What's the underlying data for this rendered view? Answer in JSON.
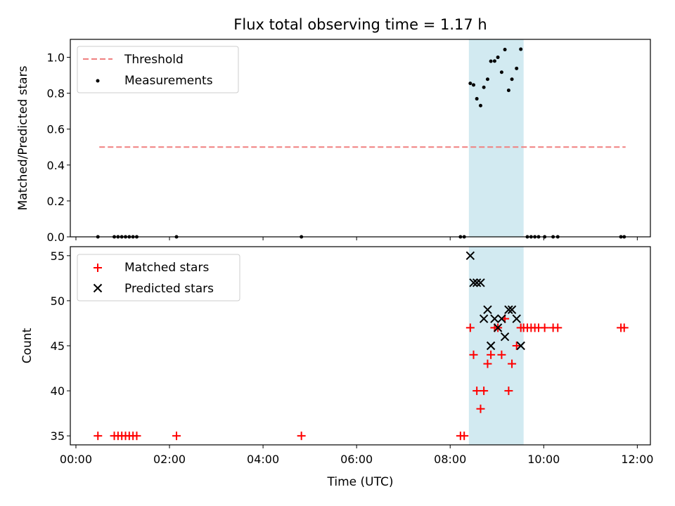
{
  "chart_data": [
    {
      "type": "scatter",
      "title": "Flux total observing time = 1.17 h",
      "xlabel": "",
      "ylabel": "Matched/Predicted stars",
      "xlim": [
        -0.12,
        12.28
      ],
      "ylim": [
        0.0,
        1.1
      ],
      "yticks": [
        "0.0",
        "0.2",
        "0.4",
        "0.6",
        "0.8",
        "1.0"
      ],
      "shaded_region": [
        8.4,
        9.57
      ],
      "series": [
        {
          "name": "Threshold",
          "kind": "dashed-line",
          "color": "#f08080",
          "x": [
            0.5,
            11.75
          ],
          "y": [
            0.5,
            0.5
          ]
        },
        {
          "name": "Measurements",
          "kind": "dot",
          "color": "#000000",
          "points": [
            [
              0.47,
              0.0
            ],
            [
              0.82,
              0.0
            ],
            [
              0.9,
              0.0
            ],
            [
              0.98,
              0.0
            ],
            [
              1.06,
              0.0
            ],
            [
              1.14,
              0.0
            ],
            [
              1.22,
              0.0
            ],
            [
              1.3,
              0.0
            ],
            [
              2.15,
              0.0
            ],
            [
              4.82,
              0.0
            ],
            [
              8.22,
              0.0
            ],
            [
              8.3,
              0.0
            ],
            [
              9.65,
              0.0
            ],
            [
              9.73,
              0.0
            ],
            [
              9.81,
              0.0
            ],
            [
              9.89,
              0.0
            ],
            [
              10.02,
              0.0
            ],
            [
              10.2,
              0.0
            ],
            [
              10.3,
              0.0
            ],
            [
              11.65,
              0.0
            ],
            [
              11.72,
              0.0
            ],
            [
              8.43,
              0.855
            ],
            [
              8.5,
              0.846
            ],
            [
              8.57,
              0.769
            ],
            [
              8.65,
              0.731
            ],
            [
              8.72,
              0.833
            ],
            [
              8.8,
              0.878
            ],
            [
              8.87,
              0.978
            ],
            [
              8.95,
              0.979
            ],
            [
              9.02,
              1.0
            ],
            [
              9.1,
              0.917
            ],
            [
              9.17,
              1.043
            ],
            [
              9.25,
              0.816
            ],
            [
              9.32,
              0.878
            ],
            [
              9.42,
              0.938
            ],
            [
              9.51,
              1.045
            ]
          ]
        }
      ],
      "legend": "top-left"
    },
    {
      "type": "scatter",
      "xlabel": "Time (UTC)",
      "ylabel": "Count",
      "xlim": [
        -0.12,
        12.28
      ],
      "ylim": [
        34.0,
        56.0
      ],
      "xticks": [
        "00:00",
        "02:00",
        "04:00",
        "06:00",
        "08:00",
        "10:00",
        "12:00"
      ],
      "yticks": [
        "35",
        "40",
        "45",
        "50",
        "55"
      ],
      "shaded_region": [
        8.4,
        9.57
      ],
      "series": [
        {
          "name": "Matched stars",
          "kind": "plus",
          "color": "#ff0000",
          "points": [
            [
              0.47,
              35
            ],
            [
              0.82,
              35
            ],
            [
              0.9,
              35
            ],
            [
              0.98,
              35
            ],
            [
              1.06,
              35
            ],
            [
              1.14,
              35
            ],
            [
              1.22,
              35
            ],
            [
              1.3,
              35
            ],
            [
              2.15,
              35
            ],
            [
              4.82,
              35
            ],
            [
              8.22,
              35
            ],
            [
              8.3,
              35
            ],
            [
              8.43,
              47
            ],
            [
              8.5,
              44
            ],
            [
              8.57,
              40
            ],
            [
              8.65,
              38
            ],
            [
              8.72,
              40
            ],
            [
              8.8,
              43
            ],
            [
              8.87,
              44
            ],
            [
              8.95,
              47
            ],
            [
              9.02,
              47
            ],
            [
              9.1,
              44
            ],
            [
              9.17,
              48
            ],
            [
              9.25,
              40
            ],
            [
              9.32,
              43
            ],
            [
              9.42,
              45
            ],
            [
              9.51,
              47
            ],
            [
              9.57,
              47
            ],
            [
              9.65,
              47
            ],
            [
              9.73,
              47
            ],
            [
              9.81,
              47
            ],
            [
              9.89,
              47
            ],
            [
              10.02,
              47
            ],
            [
              10.2,
              47
            ],
            [
              10.3,
              47
            ],
            [
              11.65,
              47
            ],
            [
              11.72,
              47
            ]
          ]
        },
        {
          "name": "Predicted stars",
          "kind": "x",
          "color": "#000000",
          "points": [
            [
              8.43,
              55
            ],
            [
              8.5,
              52
            ],
            [
              8.57,
              52
            ],
            [
              8.65,
              52
            ],
            [
              8.72,
              48
            ],
            [
              8.8,
              49
            ],
            [
              8.87,
              45
            ],
            [
              8.95,
              48
            ],
            [
              9.02,
              47
            ],
            [
              9.1,
              48
            ],
            [
              9.17,
              46
            ],
            [
              9.25,
              49
            ],
            [
              9.32,
              49
            ],
            [
              9.42,
              48
            ],
            [
              9.51,
              45
            ]
          ]
        }
      ],
      "legend": "top-left"
    }
  ]
}
